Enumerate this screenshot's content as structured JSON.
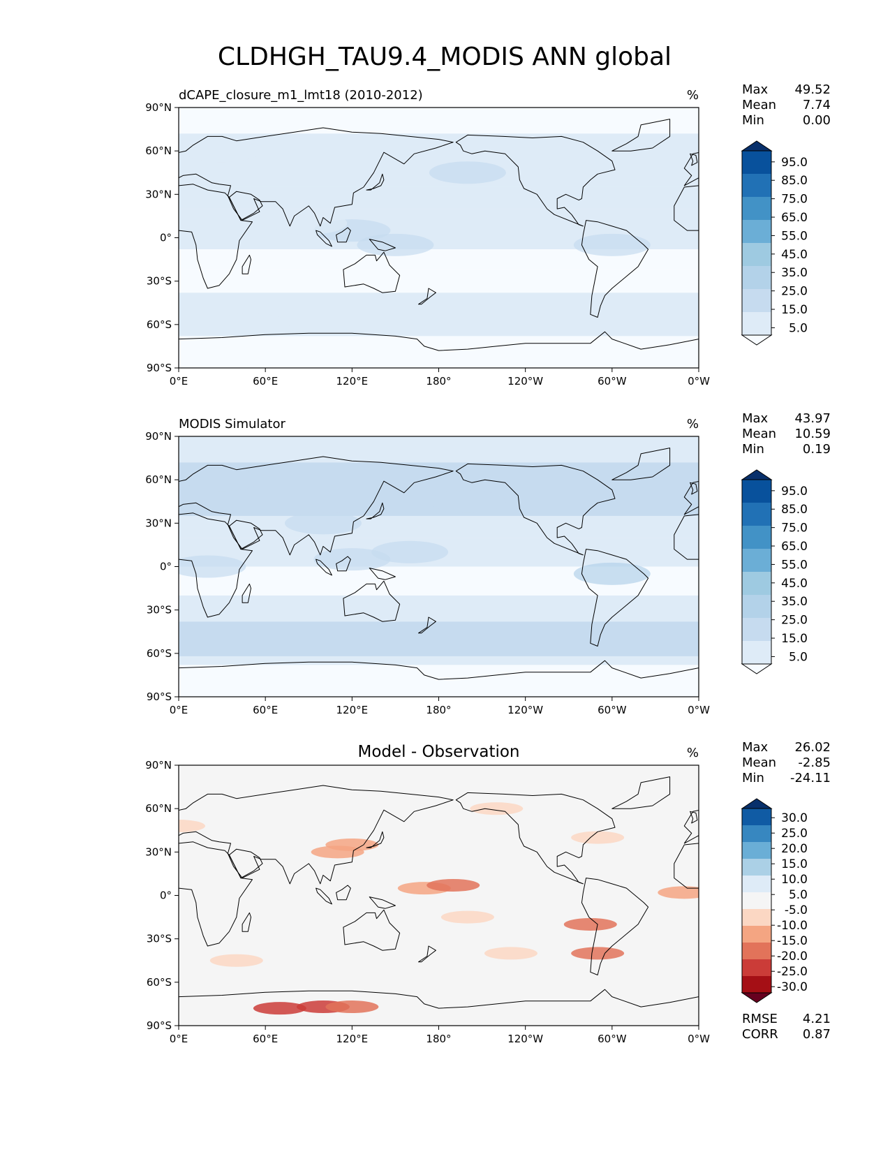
{
  "title": "CLDHGH_TAU9.4_MODIS ANN global",
  "colors": {
    "blues": [
      "#f7fbff",
      "#deebf7",
      "#c6dbef",
      "#b3d2e9",
      "#9ecae1",
      "#6baed6",
      "#4292c6",
      "#2171b5",
      "#08519c",
      "#08306b"
    ],
    "diverging": [
      "#67001f",
      "#a50f15",
      "#cb3c38",
      "#e2735a",
      "#f4a582",
      "#fbd7c3",
      "#f5f5f5",
      "#deebf7",
      "#abd0e6",
      "#6aaed6",
      "#3787c0",
      "#105ba4",
      "#08306b"
    ],
    "land_outline": "#000000",
    "ocean_light": "#f7fbff"
  },
  "axes": {
    "xticks": [
      "0°E",
      "60°E",
      "120°E",
      "180°",
      "120°W",
      "60°W",
      "0°W"
    ],
    "yticks": [
      "90°N",
      "60°N",
      "30°N",
      "0°",
      "30°S",
      "60°S",
      "90°S"
    ]
  },
  "chart_data": [
    {
      "type": "heatmap",
      "title_left": "dCAPE_closure_m1_lmt18 (2010-2012)",
      "units": "%",
      "stats": {
        "max_label": "Max",
        "max": "49.52",
        "mean_label": "Mean",
        "mean": "7.74",
        "min_label": "Min",
        "min": "0.00"
      },
      "colorbar": {
        "palette": "blues",
        "labels": [
          "95.0",
          "85.0",
          "75.0",
          "65.0",
          "55.0",
          "45.0",
          "35.0",
          "25.0",
          "15.0",
          "5.0"
        ],
        "extend": "both"
      },
      "xlim": [
        0,
        360
      ],
      "ylim": [
        -90,
        90
      ]
    },
    {
      "type": "heatmap",
      "title_left": "MODIS Simulator",
      "units": "%",
      "stats": {
        "max_label": "Max",
        "max": "43.97",
        "mean_label": "Mean",
        "mean": "10.59",
        "min_label": "Min",
        "min": "0.19"
      },
      "colorbar": {
        "palette": "blues",
        "labels": [
          "95.0",
          "85.0",
          "75.0",
          "65.0",
          "55.0",
          "45.0",
          "35.0",
          "25.0",
          "15.0",
          "5.0"
        ],
        "extend": "both"
      },
      "xlim": [
        0,
        360
      ],
      "ylim": [
        -90,
        90
      ]
    },
    {
      "type": "heatmap",
      "title_center": "Model - Observation",
      "units": "%",
      "stats": {
        "max_label": "Max",
        "max": "26.02",
        "mean_label": "Mean",
        "mean": "-2.85",
        "min_label": "Min",
        "min": "-24.11"
      },
      "colorbar": {
        "palette": "diverging",
        "labels": [
          "30.0",
          "25.0",
          "20.0",
          "15.0",
          "10.0",
          "5.0",
          "-5.0",
          "-10.0",
          "-15.0",
          "-20.0",
          "-25.0",
          "-30.0"
        ],
        "extend": "both"
      },
      "metrics": {
        "rmse_label": "RMSE",
        "rmse": "4.21",
        "corr_label": "CORR",
        "corr": "0.87"
      },
      "xlim": [
        0,
        360
      ],
      "ylim": [
        -90,
        90
      ]
    }
  ]
}
